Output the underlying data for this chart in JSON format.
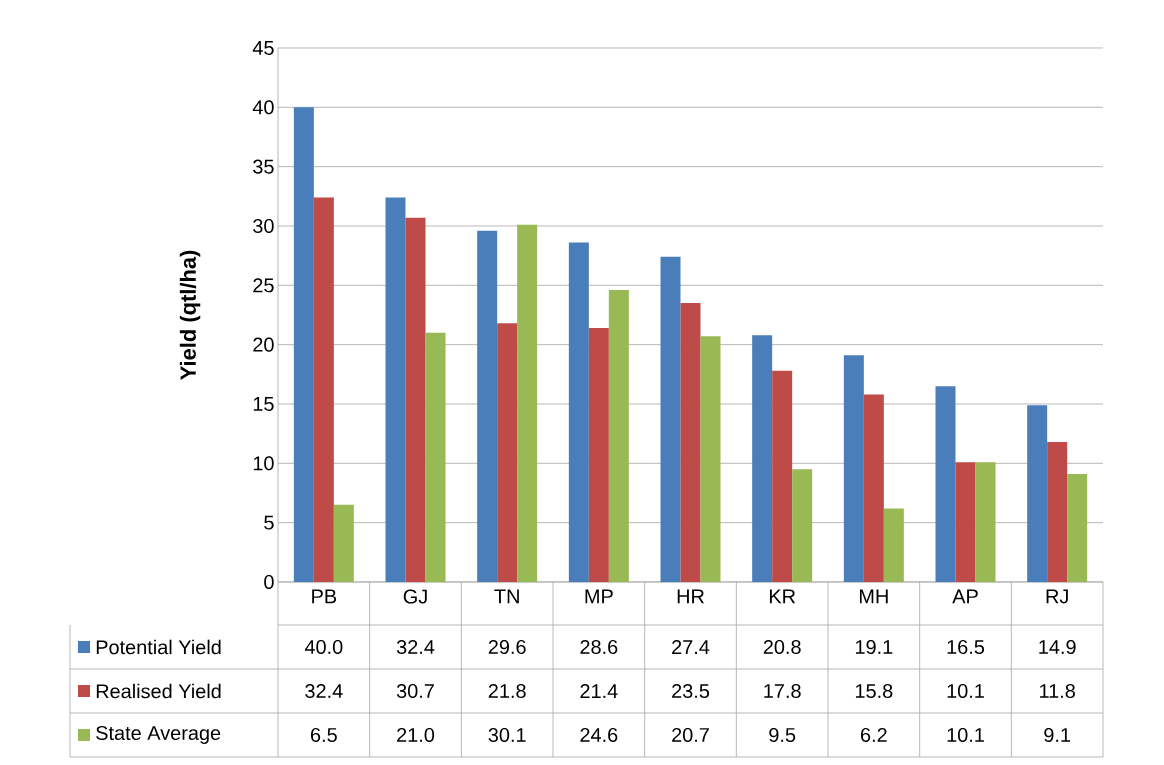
{
  "chart_data": {
    "type": "bar",
    "ylabel": "Yield (qtl/ha)",
    "categories": [
      "PB",
      "GJ",
      "TN",
      "MP",
      "HR",
      "KR",
      "MH",
      "AP",
      "RJ"
    ],
    "ylim": [
      0,
      45
    ],
    "yticks": [
      0,
      5,
      10,
      15,
      20,
      25,
      30,
      35,
      40,
      45
    ],
    "grid": "y",
    "legend": "bottom",
    "series": [
      {
        "name": "Potential Yield",
        "color": "#4a7ebb",
        "values": [
          40.0,
          32.4,
          29.6,
          28.6,
          27.4,
          20.8,
          19.1,
          16.5,
          14.9
        ],
        "value_labels": [
          "40.0",
          "32.4",
          "29.6",
          "28.6",
          "27.4",
          "20.8",
          "19.1",
          "16.5",
          "14.9"
        ]
      },
      {
        "name": "Realised Yield",
        "color": "#be4b48",
        "values": [
          32.4,
          30.7,
          21.8,
          21.4,
          23.5,
          17.8,
          15.8,
          10.1,
          11.8
        ],
        "value_labels": [
          "32.4",
          "30.7",
          "21.8",
          "21.4",
          "23.5",
          "17.8",
          "15.8",
          "10.1",
          "11.8"
        ]
      },
      {
        "name": "State Average",
        "color": "#98b954",
        "values": [
          6.5,
          21.0,
          30.1,
          24.6,
          20.7,
          9.5,
          6.2,
          10.1,
          9.1
        ],
        "value_labels": [
          "6.5",
          "21.0",
          "30.1",
          "24.6",
          "20.7",
          "9.5",
          "6.2",
          "10.1",
          "9.1"
        ]
      }
    ]
  }
}
